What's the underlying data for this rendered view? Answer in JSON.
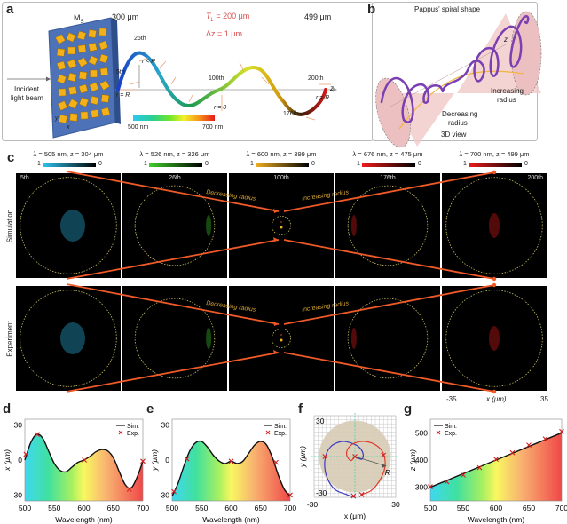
{
  "figure": {
    "panel_labels": [
      "a",
      "b",
      "c",
      "d",
      "e",
      "f",
      "g"
    ]
  },
  "panel_a": {
    "metasurface_label": "M",
    "metasurface_subscript": "S",
    "incident_label_line1": "Incident",
    "incident_label_line2": "light beam",
    "axis_y": "y",
    "axis_x": "x",
    "start_z": "300 μm",
    "end_z": "499 μm",
    "tl_label": "T",
    "tl_sub": "L",
    "tl_value": " = 200 μm",
    "dz_label": "Δz = 1 μm",
    "markers": {
      "m5": "5th",
      "m26": "26th",
      "m100": "100th",
      "m176": "176th",
      "m200": "200th"
    },
    "r_eq_R_left": "r = R",
    "r_lt_R": "r < R",
    "r_zero": "r = 0",
    "r_eq_R_right": "r = R",
    "z_axis": "z",
    "colorbar_min": "500 nm",
    "colorbar_max": "700 nm"
  },
  "panel_b": {
    "title": "Pappus' spiral shape",
    "z_axis": "z",
    "increasing_line1": "Increasing",
    "increasing_line2": "radius",
    "decreasing_line1": "Decreasing",
    "decreasing_line2": "radius",
    "view_label": "3D view"
  },
  "panel_c": {
    "row_labels": [
      "Simulation",
      "Experiment"
    ],
    "columns": [
      {
        "title": "λ = 505 nm, z = 304 μm",
        "index": "5th",
        "cb_max": "1",
        "cb_min": "0",
        "color": "#2ec4f0"
      },
      {
        "title": "λ = 526 nm, z = 326 μm",
        "index": "26th",
        "cb_max": "1",
        "cb_min": "0",
        "color": "#3ed12a"
      },
      {
        "title": "λ = 600 nm, z = 399 μm",
        "index": "100th",
        "cb_max": "1",
        "cb_min": "0",
        "color": "#f0b020"
      },
      {
        "title": "λ = 676 nm, z = 475 μm",
        "index": "176th",
        "cb_max": "1",
        "cb_min": "0",
        "color": "#ee1c1c"
      },
      {
        "title": "λ = 700 nm, z = 499 μm",
        "index": "200th",
        "cb_max": "1",
        "cb_min": "0",
        "color": "#ee1c1c"
      }
    ],
    "decreasing_label": "Decreasing radius",
    "increasing_label": "Increasing radius",
    "x_axis_min": "-35",
    "x_axis_max": "35",
    "x_axis_label": "x (μm)"
  },
  "chart_data": [
    {
      "id": "d",
      "type": "line",
      "title": "",
      "xlabel": "Wavelength (nm)",
      "ylabel": "x (μm)",
      "xlim": [
        500,
        700
      ],
      "ylim": [
        -35,
        35
      ],
      "xticks": [
        500,
        550,
        600,
        650,
        700
      ],
      "yticks": [
        -30,
        0,
        30
      ],
      "legend": [
        "Sim.",
        "Exp."
      ],
      "legend_position": "top-right",
      "series": [
        {
          "name": "Sim.",
          "x": [
            500,
            510,
            520,
            530,
            540,
            550,
            560,
            570,
            580,
            590,
            600,
            610,
            620,
            630,
            640,
            650,
            660,
            670,
            680,
            690,
            700
          ],
          "y": [
            0,
            15,
            22,
            19,
            8,
            -3,
            -9,
            -10,
            -6,
            -2,
            0,
            3,
            7,
            9,
            8,
            2,
            -10,
            -21,
            -24,
            -15,
            -1
          ]
        },
        {
          "name": "Exp.",
          "x": [
            502,
            521,
            601,
            677,
            700
          ],
          "y": [
            5,
            22,
            0,
            -25,
            -1
          ]
        }
      ]
    },
    {
      "id": "e",
      "type": "line",
      "title": "",
      "xlabel": "Wavelength (nm)",
      "ylabel": "y (μm)",
      "xlim": [
        500,
        700
      ],
      "ylim": [
        -35,
        35
      ],
      "xticks": [
        500,
        550,
        600,
        650,
        700
      ],
      "yticks": [
        -30,
        0,
        30
      ],
      "legend": [
        "Sim.",
        "Exp."
      ],
      "legend_position": "top-right",
      "series": [
        {
          "name": "Sim.",
          "x": [
            500,
            510,
            520,
            530,
            540,
            550,
            560,
            570,
            580,
            590,
            600,
            610,
            620,
            630,
            640,
            650,
            660,
            670,
            680,
            690,
            700
          ],
          "y": [
            -31,
            -20,
            -5,
            8,
            15,
            16,
            11,
            4,
            -1,
            -3,
            -1,
            -3,
            -1,
            6,
            13,
            16,
            13,
            2,
            -13,
            -25,
            -31
          ]
        },
        {
          "name": "Exp.",
          "x": [
            503,
            525,
            600,
            676,
            700
          ],
          "y": [
            -27,
            1,
            -1,
            -2,
            -30
          ]
        }
      ]
    },
    {
      "id": "f",
      "type": "scatter",
      "title": "",
      "xlabel": "x (μm)",
      "ylabel": "y (μm)",
      "xlim": [
        -30,
        30
      ],
      "ylim": [
        -30,
        30
      ],
      "xticks": [
        -30,
        30
      ],
      "yticks": [
        -30,
        30
      ],
      "annotation": "R",
      "grid": true,
      "series": [
        {
          "name": "decreasing (blue)",
          "x": [
            0,
            5,
            6,
            3,
            -3,
            -10,
            -18,
            -22,
            -21,
            -15,
            -6,
            0
          ],
          "y": [
            0,
            -2,
            2,
            7,
            10,
            11,
            7,
            -2,
            -14,
            -24,
            -28,
            -30
          ]
        },
        {
          "name": "increasing (red)",
          "x": [
            0,
            -3,
            -6,
            -5,
            0,
            8,
            16,
            21,
            22,
            18,
            12,
            5
          ],
          "y": [
            0,
            -3,
            1,
            6,
            10,
            11,
            8,
            2,
            -8,
            -18,
            -25,
            -28
          ]
        },
        {
          "name": "Exp.",
          "x": [
            0,
            -22,
            21,
            -1,
            5
          ],
          "y": [
            0,
            0,
            1,
            -29,
            -28
          ]
        }
      ]
    },
    {
      "id": "g",
      "type": "line",
      "title": "",
      "xlabel": "Wavelength (nm)",
      "ylabel": "z (μm)",
      "xlim": [
        500,
        700
      ],
      "ylim": [
        250,
        550
      ],
      "xticks": [
        500,
        550,
        600,
        650,
        700
      ],
      "yticks": [
        300,
        400,
        500
      ],
      "legend": [
        "Sim.",
        "Exp."
      ],
      "legend_position": "top-left",
      "series": [
        {
          "name": "Sim.",
          "x": [
            500,
            700
          ],
          "y": [
            300,
            500
          ]
        },
        {
          "name": "Exp.",
          "x": [
            500,
            525,
            550,
            575,
            600,
            625,
            650,
            675,
            700
          ],
          "y": [
            302,
            320,
            345,
            372,
            403,
            427,
            455,
            478,
            505
          ]
        }
      ]
    }
  ]
}
